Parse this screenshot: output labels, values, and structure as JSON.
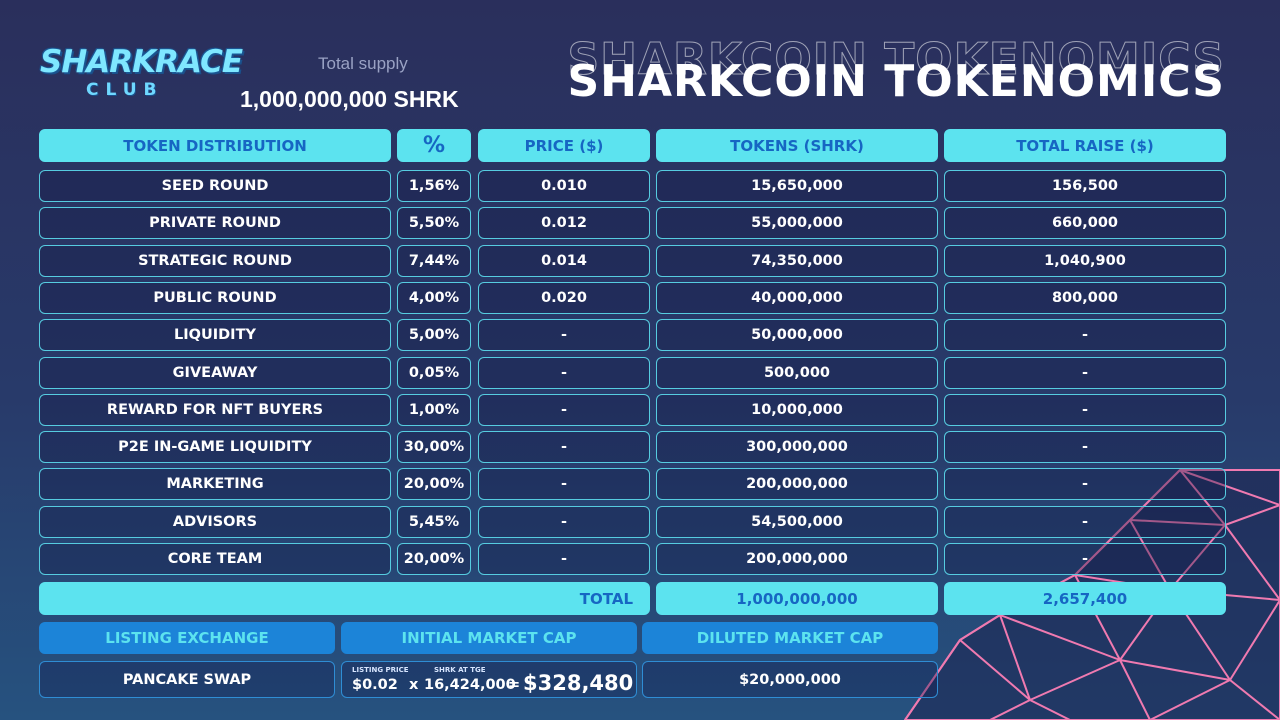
{
  "logo": {
    "line1": "SHARKRACE",
    "line2": "CLUB"
  },
  "supply": {
    "label": "Total supply",
    "value": "1,000,000,000 SHRK"
  },
  "title": "SHARKCOIN TOKENOMICS",
  "headers": [
    "TOKEN DISTRIBUTION",
    "%",
    "PRICE ($)",
    "TOKENS (SHRK)",
    "TOTAL RAISE ($)"
  ],
  "rows": [
    [
      "SEED ROUND",
      "1,56%",
      "0.010",
      "15,650,000",
      "156,500"
    ],
    [
      "PRIVATE ROUND",
      "5,50%",
      "0.012",
      "55,000,000",
      "660,000"
    ],
    [
      "STRATEGIC ROUND",
      "7,44%",
      "0.014",
      "74,350,000",
      "1,040,900"
    ],
    [
      "PUBLIC ROUND",
      "4,00%",
      "0.020",
      "40,000,000",
      "800,000"
    ],
    [
      "LIQUIDITY",
      "5,00%",
      "-",
      "50,000,000",
      "-"
    ],
    [
      "GIVEAWAY",
      "0,05%",
      "-",
      "500,000",
      "-"
    ],
    [
      "REWARD FOR NFT BUYERS",
      "1,00%",
      "-",
      "10,000,000",
      "-"
    ],
    [
      "P2E IN-GAME LIQUIDITY",
      "30,00%",
      "-",
      "300,000,000",
      "-"
    ],
    [
      "MARKETING",
      "20,00%",
      "-",
      "200,000,000",
      "-"
    ],
    [
      "ADVISORS",
      "5,45%",
      "-",
      "54,500,000",
      "-"
    ],
    [
      "CORE TEAM",
      "20,00%",
      "-",
      "200,000,000",
      "-"
    ]
  ],
  "total": {
    "label": "TOTAL",
    "tokens": "1,000,000,000",
    "raise": "2,657,400"
  },
  "market": {
    "headers": [
      "LISTING EXCHANGE",
      "INITIAL MARKET CAP",
      "DILUTED MARKET CAP"
    ],
    "exchange": "PANCAKE SWAP",
    "listing_price_label": "LISTING PRICE",
    "shrk_at_tge_label": "SHRK AT TGE",
    "listing_price": "$0.02",
    "times": "x",
    "shrk_at_tge": "16,424,000",
    "equals": "=",
    "initial_cap": "$328,480",
    "diluted_cap": "$20,000,000"
  },
  "colors": {
    "accent": "#5ce3ef",
    "header_text": "#1666c3",
    "secondary_header": "#1c84d8",
    "decor_lines": "#f07ab0"
  }
}
